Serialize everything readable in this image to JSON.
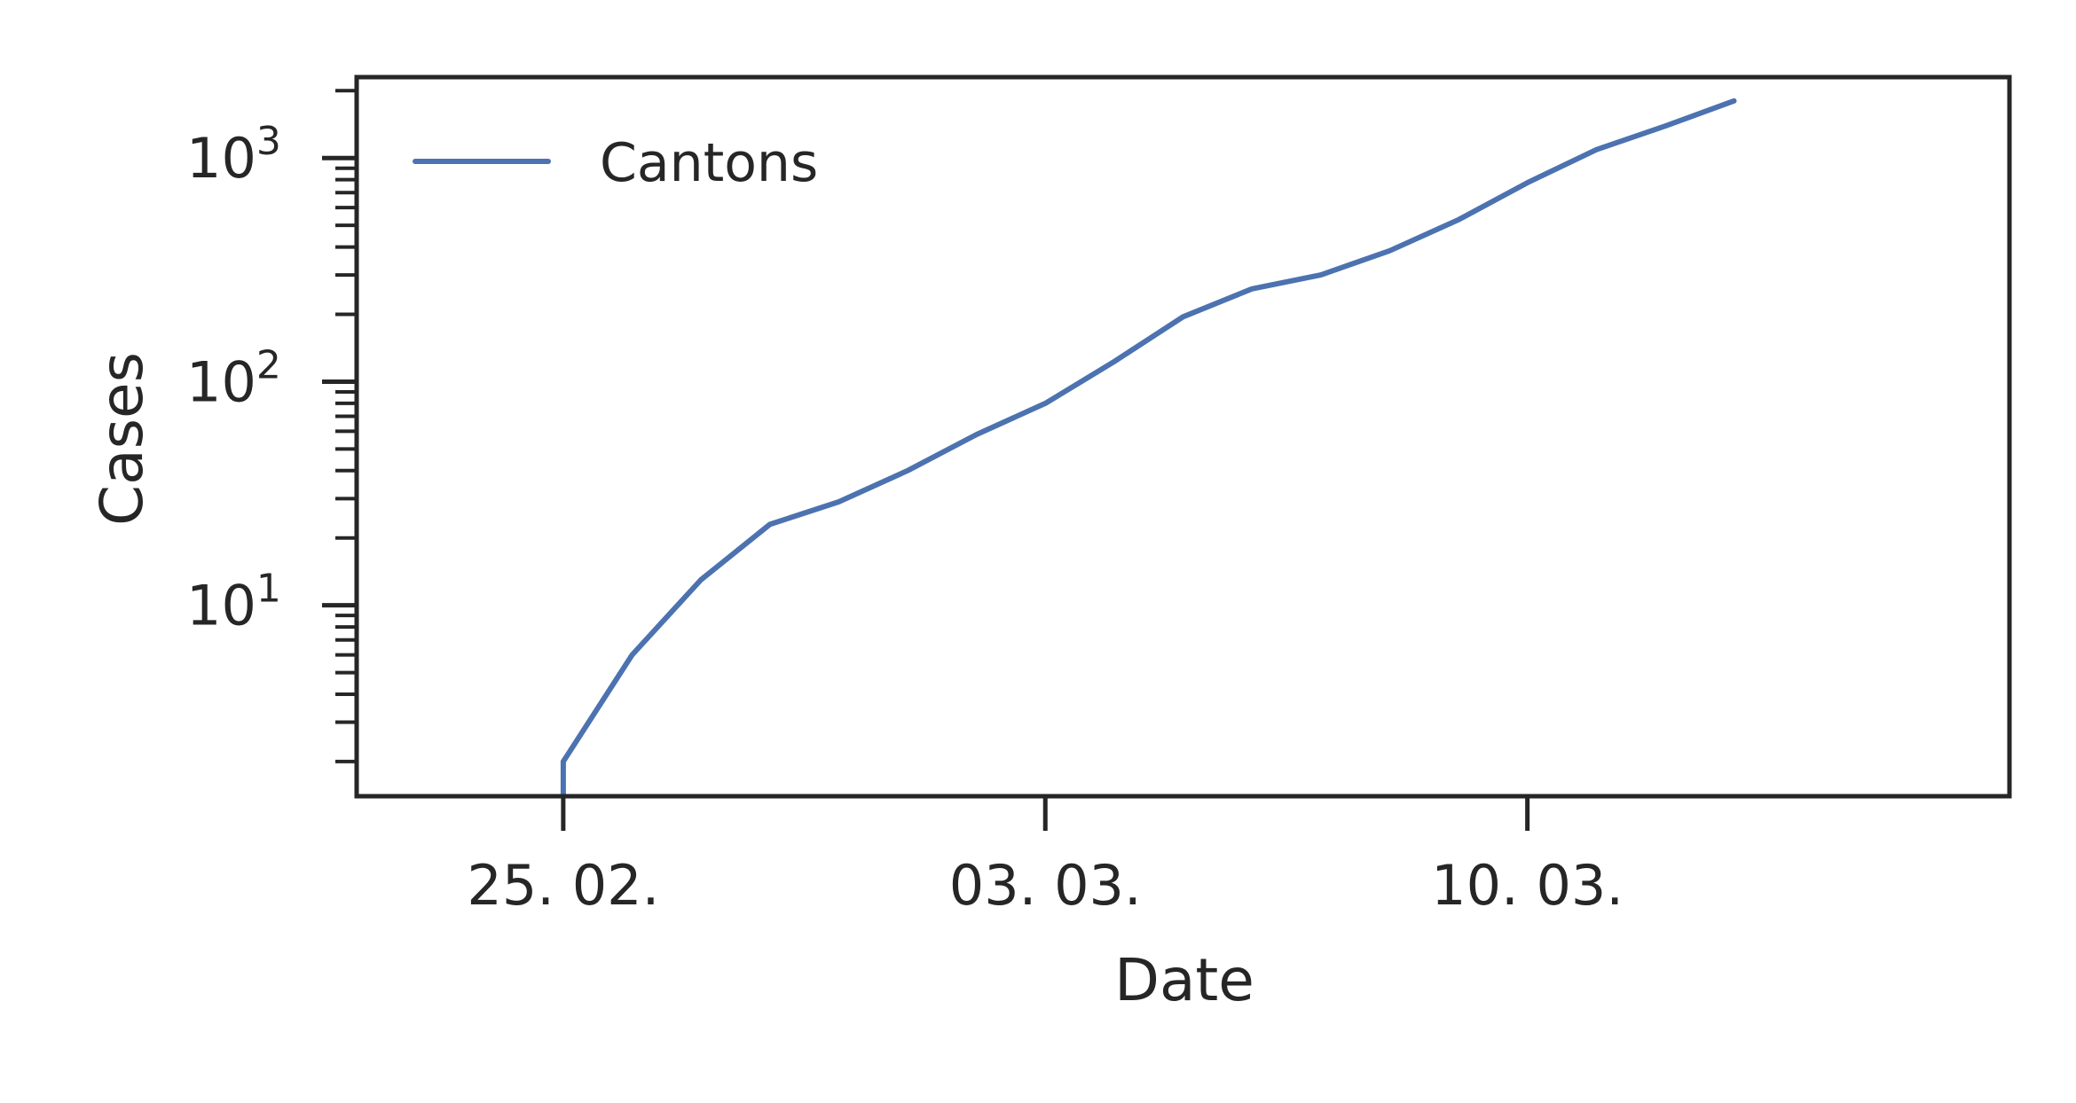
{
  "chart_data": {
    "type": "line",
    "title": "",
    "xlabel": "Date",
    "ylabel": "Cases",
    "y_scale": "log",
    "ylim": [
      1.4,
      2300
    ],
    "xlim": [
      "2020-02-22",
      "2020-03-17"
    ],
    "x_ticks": [
      {
        "date": "2020-02-25",
        "label": "25. 02."
      },
      {
        "date": "2020-03-03",
        "label": "03. 03."
      },
      {
        "date": "2020-03-10",
        "label": "10. 03."
      }
    ],
    "y_ticks": [
      {
        "value": 10,
        "base": "10",
        "exp": "1"
      },
      {
        "value": 100,
        "base": "10",
        "exp": "2"
      },
      {
        "value": 1000,
        "base": "10",
        "exp": "3"
      }
    ],
    "grid": false,
    "legend_position": "top-left",
    "series": [
      {
        "name": "Cantons",
        "color": "#4c72b0",
        "x": [
          "2020-02-25",
          "2020-02-26",
          "2020-02-27",
          "2020-02-28",
          "2020-02-29",
          "2020-03-01",
          "2020-03-02",
          "2020-03-03",
          "2020-03-04",
          "2020-03-05",
          "2020-03-06",
          "2020-03-07",
          "2020-03-08",
          "2020-03-09",
          "2020-03-10",
          "2020-03-11",
          "2020-03-12",
          "2020-03-13",
          "2020-03-14"
        ],
        "y": [
          2,
          6,
          13,
          23,
          29,
          40,
          58,
          80,
          123,
          195,
          260,
          300,
          385,
          530,
          775,
          1090,
          1390,
          1800,
          null
        ]
      }
    ]
  }
}
